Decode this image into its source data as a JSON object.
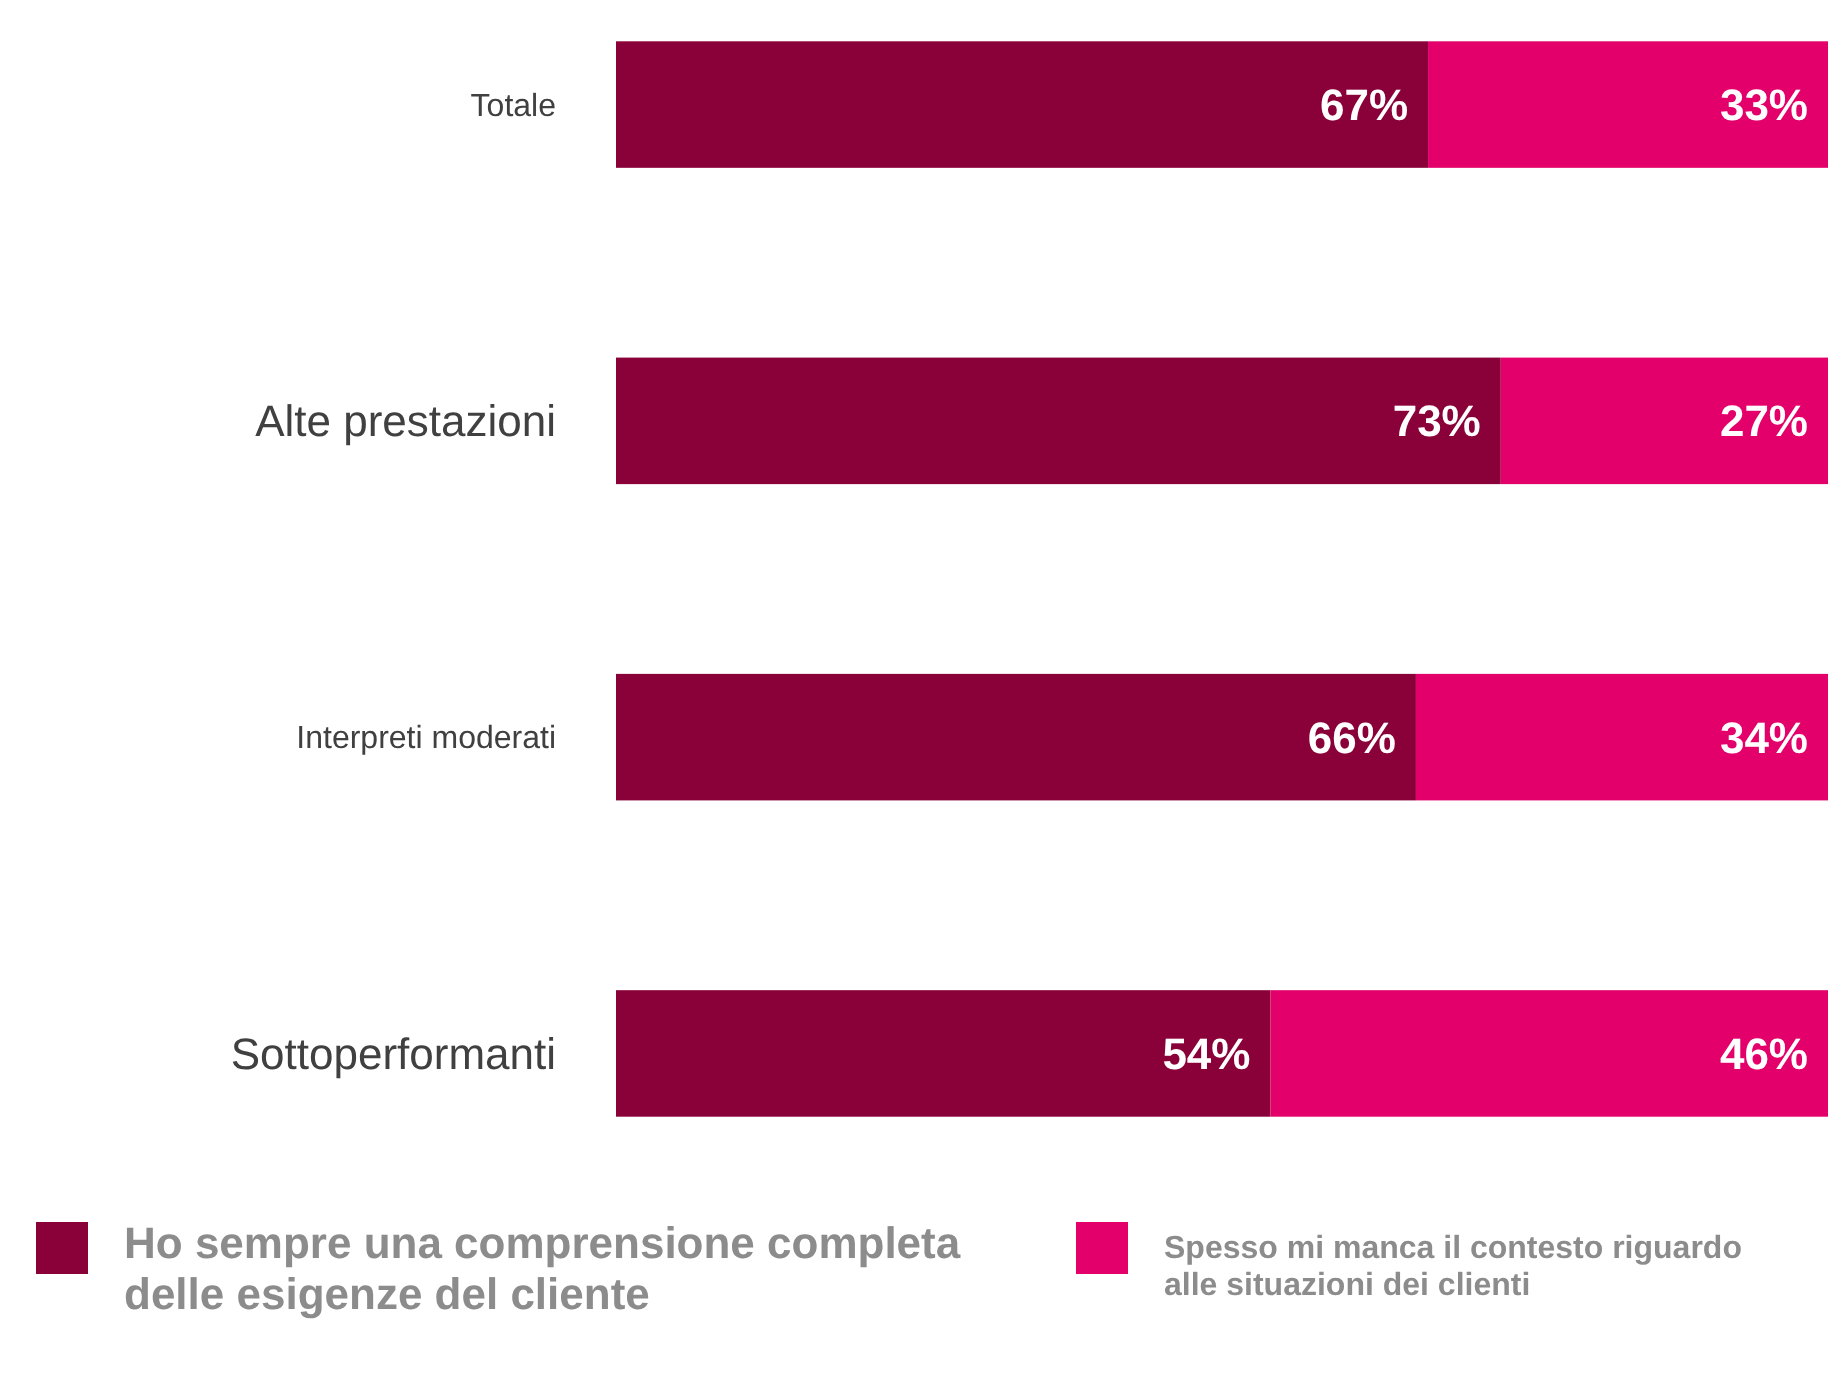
{
  "chart_data": {
    "type": "bar",
    "orientation": "horizontal",
    "stacked": true,
    "categories": [
      "Totale",
      "Alte prestazioni",
      "Interpreti moderati",
      "Sottoperformanti"
    ],
    "series": [
      {
        "name": "Ho sempre una comprensione completa delle esigenze del cliente",
        "color": "#8a0039",
        "values": [
          67,
          73,
          66,
          54
        ],
        "value_labels": [
          "67%",
          "73%",
          "66%",
          "54%"
        ]
      },
      {
        "name": "Spesso mi manca il contesto riguardo alle situazioni dei clienti",
        "color": "#e3006b",
        "values": [
          33,
          27,
          34,
          46
        ],
        "value_labels": [
          "33%",
          "27%",
          "34%",
          "46%"
        ]
      }
    ],
    "xlim": [
      0,
      100
    ],
    "legend": "bottom",
    "tick_labels": "y"
  }
}
